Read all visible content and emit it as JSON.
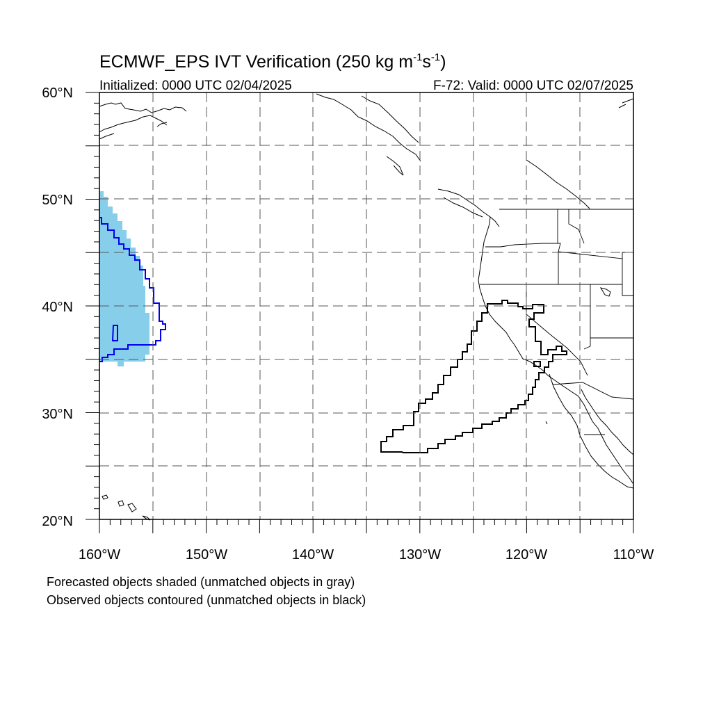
{
  "title": {
    "main": "ECMWF_EPS IVT Verification (250 kg m",
    "exp1": "-1",
    "mid": "s",
    "exp2": "-1",
    "close": ")"
  },
  "subtitle_left": "Initialized: 0000 UTC 02/04/2025",
  "subtitle_right": "F-72: Valid: 0000 UTC 02/07/2025",
  "lat_labels": [
    "60°N",
    "50°N",
    "40°N",
    "30°N",
    "20°N"
  ],
  "lon_labels": [
    "160°W",
    "150°W",
    "140°W",
    "130°W",
    "120°W",
    "110°W"
  ],
  "footnote_1": "Forecasted objects shaded (unmatched objects in gray)",
  "footnote_2": "Observed objects contoured (unmatched objects in black)",
  "colors": {
    "forecast_matched_fill": "#87ceeb",
    "observed_matched_contour": "#0000ee",
    "observed_unmatched_contour": "#000000",
    "coastline": "#000000",
    "grid": "#555555"
  },
  "map_extent": {
    "lon_min": -160,
    "lon_max": -110,
    "lat_min": 20,
    "lat_max": 60
  }
}
